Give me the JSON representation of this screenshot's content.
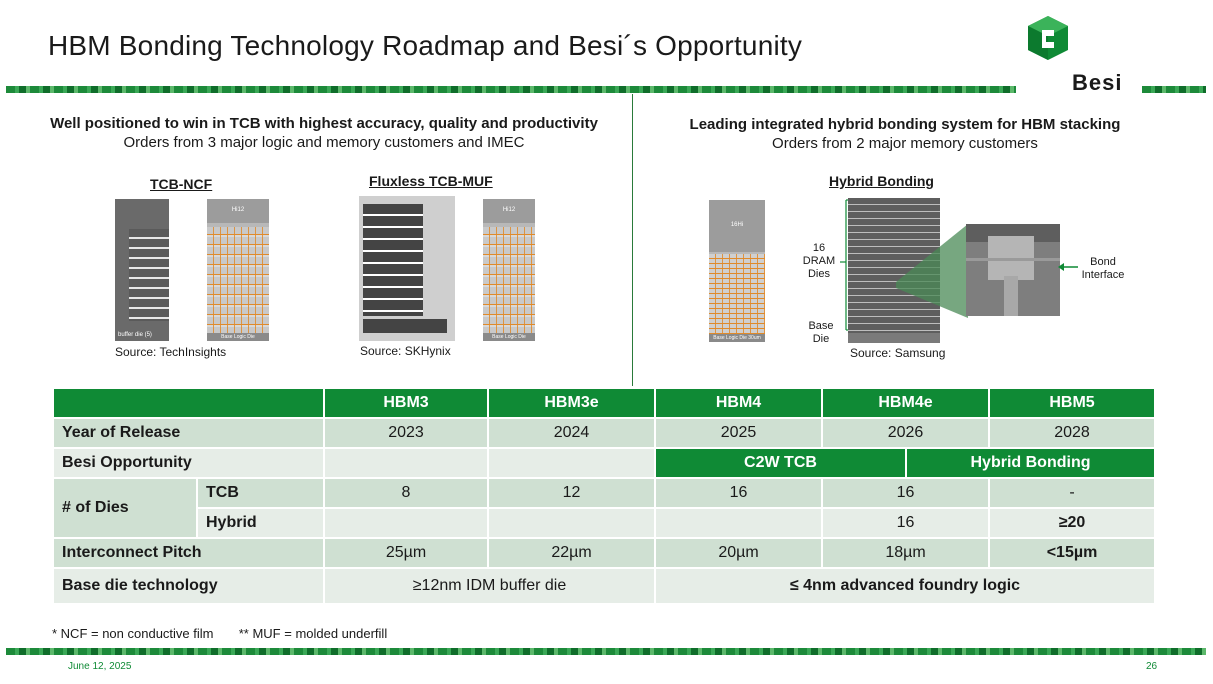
{
  "slide": {
    "title": "HBM Bonding Technology Roadmap and Besi´s Opportunity",
    "logo_text": "Besi",
    "brand_color": "#0f8a35"
  },
  "left_panel": {
    "headline": "Well positioned to win in TCB with highest accuracy, quality and productivity",
    "subline": "Orders from 3 major logic and memory customers and IMEC",
    "images": [
      {
        "label": "TCB-NCF",
        "source": "Source: TechInsights",
        "die_caption": "buffer die (5)",
        "stack_top": "Hi12",
        "stack_base": "Base Logic Die"
      },
      {
        "label": "Fluxless TCB-MUF",
        "source": "Source: SKHynix",
        "stack_top": "Hi12",
        "stack_base": "Base Logic Die"
      }
    ]
  },
  "right_panel": {
    "headline": "Leading integrated hybrid bonding system for HBM stacking",
    "subline": "Orders from 2 major memory customers",
    "image_label": "Hybrid Bonding",
    "source": "Source: Samsung",
    "stack_top": "16Hi",
    "stack_base": "Base Logic Die  30um",
    "annotations": {
      "dram": "16 DRAM Dies",
      "base": "Base Die",
      "bond": "Bond Interface"
    }
  },
  "table": {
    "columns": [
      "HBM3",
      "HBM3e",
      "HBM4",
      "HBM4e",
      "HBM5"
    ],
    "year_label": "Year of Release",
    "years": [
      "2023",
      "2024",
      "2025",
      "2026",
      "2028"
    ],
    "opportunity_label": "Besi Opportunity",
    "opportunity_c2w": "C2W TCB",
    "opportunity_hybrid": "Hybrid Bonding",
    "dies_label": "# of Dies",
    "tcb_label": "TCB",
    "tcb_values": [
      "8",
      "12",
      "16",
      "16",
      "-"
    ],
    "hybrid_label": "Hybrid",
    "hybrid_values": [
      "",
      "",
      "",
      "16",
      "≥20"
    ],
    "pitch_label": "Interconnect Pitch",
    "pitch_values": [
      "25µm",
      "22µm",
      "20µm",
      "18µm",
      "<15µm"
    ],
    "base_label": "Base die technology",
    "base_values": [
      "≥12nm IDM buffer die",
      "≤ 4nm advanced foundry logic"
    ]
  },
  "footnote": {
    "ncf": "* NCF = non conductive film",
    "muf": "** MUF = molded underfill"
  },
  "footer": {
    "date": "June 12, 2025",
    "page": "26"
  }
}
